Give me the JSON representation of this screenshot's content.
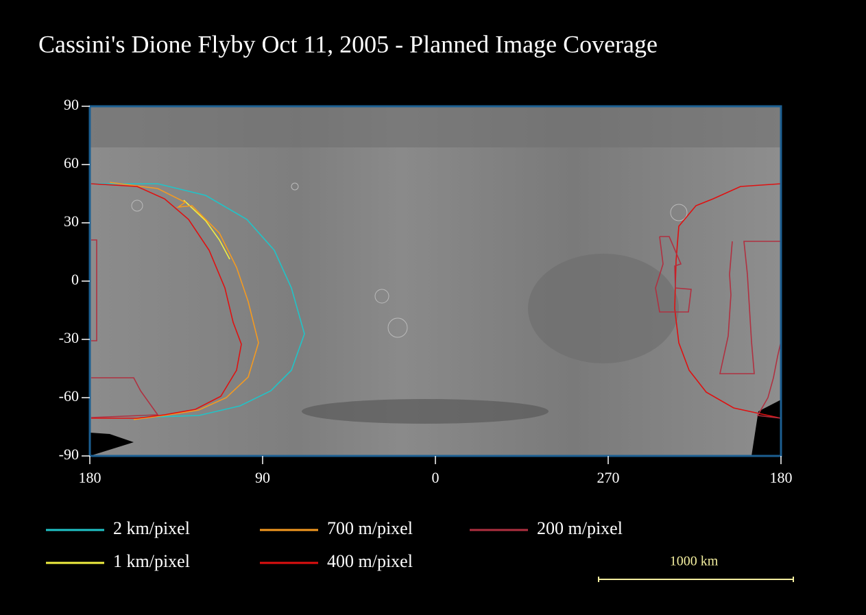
{
  "chart_data": {
    "type": "map",
    "title": "Cassini's Dione Flyby Oct 11, 2005 - Planned Image Coverage",
    "xlim": [
      180,
      -180
    ],
    "xticks": [
      180,
      90,
      0,
      {
        "value": -90,
        "label": "270"
      },
      {
        "value": -180,
        "label": "180"
      }
    ],
    "ylim": [
      -90,
      90
    ],
    "yticks": [
      90,
      60,
      30,
      0,
      -30,
      -60,
      -90
    ],
    "series": [
      {
        "name": "2 km/pixel",
        "color": "#20c4c8"
      },
      {
        "name": "1 km/pixel",
        "color": "#f2f040"
      },
      {
        "name": "700 m/pixel",
        "color": "#f59a20"
      },
      {
        "name": "400 m/pixel",
        "color": "#e01010"
      },
      {
        "name": "200 m/pixel",
        "color": "#b03040"
      }
    ],
    "scale_bar": "1000 km",
    "scale_bar_color": "#f5f0a0",
    "frame_color": "#1c5f92"
  }
}
